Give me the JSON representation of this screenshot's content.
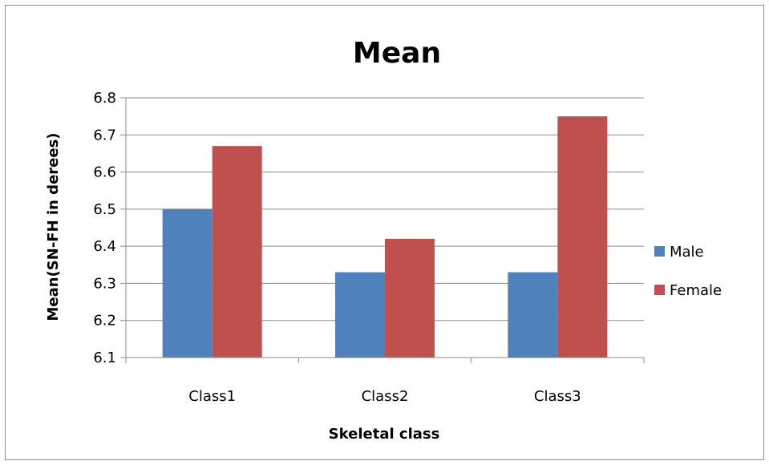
{
  "chart_data": {
    "type": "bar",
    "title": "Mean",
    "xlabel": "Skeletal class",
    "ylabel": "Mean(SN-FH in derees)",
    "categories": [
      "Class1",
      "Class2",
      "Class3"
    ],
    "series": [
      {
        "name": "Male",
        "values": [
          6.5,
          6.33,
          6.33
        ],
        "color": "#4f81bd"
      },
      {
        "name": "Female",
        "values": [
          6.67,
          6.42,
          6.75
        ],
        "color": "#c0504d"
      }
    ],
    "ylim": [
      6.1,
      6.8
    ],
    "yticks": [
      "6.1",
      "6.2",
      "6.3",
      "6.4",
      "6.5",
      "6.6",
      "6.7",
      "6.8"
    ],
    "grid": true,
    "legend": "right"
  }
}
